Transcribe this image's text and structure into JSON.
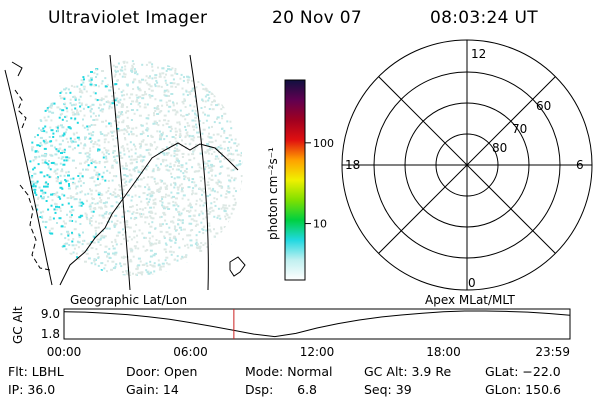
{
  "header": {
    "instrument": "Ultraviolet Imager",
    "date": "20 Nov 07",
    "time": "08:03:24 UT"
  },
  "colorbar": {
    "label": "photon cm⁻²s⁻¹",
    "ticks": [
      {
        "value": 100,
        "label": "100"
      },
      {
        "value": 10,
        "label": "10"
      }
    ],
    "scale": "log",
    "range": [
      2,
      600
    ],
    "colors": [
      "#ffffff",
      "#c0f0f0",
      "#20d8e0",
      "#00d040",
      "#80e000",
      "#f0f000",
      "#ffa000",
      "#e01010",
      "#a00020",
      "#600050",
      "#101040"
    ]
  },
  "left_panel": {
    "projection": "Geographic Lat/Lon",
    "image_color": "#20d8e0"
  },
  "polar_plot": {
    "projection": "Apex MLat/MLT",
    "mlt_labels": {
      "top": "12",
      "left": "18",
      "right": "6",
      "bottom": "0"
    },
    "lat_labels": [
      "60",
      "70",
      "80"
    ]
  },
  "chart_data": {
    "type": "line",
    "title": "",
    "ylabel": "GC Alt",
    "xlabel": "",
    "yticks": [
      "9.0",
      "1.8"
    ],
    "ylim": [
      1.8,
      9.0
    ],
    "xticks": [
      "00:00",
      "06:00",
      "12:00",
      "18:00",
      "23:59"
    ],
    "xlim_hours": [
      0,
      24
    ],
    "series": [
      {
        "x": [
          0,
          1,
          2,
          3,
          4,
          5,
          6,
          7,
          8,
          9,
          10,
          11,
          12,
          13,
          14,
          15,
          16,
          17,
          18,
          19,
          20,
          21,
          22,
          23,
          24
        ],
        "y": [
          8.8,
          8.7,
          8.4,
          8.0,
          7.4,
          6.7,
          5.8,
          4.8,
          3.7,
          2.6,
          1.9,
          2.8,
          4.3,
          5.5,
          6.5,
          7.3,
          7.9,
          8.4,
          8.8,
          9.0,
          9.0,
          8.9,
          8.7,
          8.3,
          7.8
        ]
      }
    ],
    "marker_time": "08:03:24",
    "marker_hours": 8.057,
    "marker_color": "#cc2020"
  },
  "info": {
    "flt": "Flt: LBHL",
    "ip": "IP: 36.0",
    "door": "Door: Open",
    "gain": "Gain: 14",
    "mode": "Mode: Normal",
    "dsp": "Dsp:      6.8",
    "gcalt": "GC Alt: 3.9 Re",
    "seq": "Seq: 39",
    "glat": "GLat: −22.0",
    "glon": "GLon: 150.6"
  }
}
